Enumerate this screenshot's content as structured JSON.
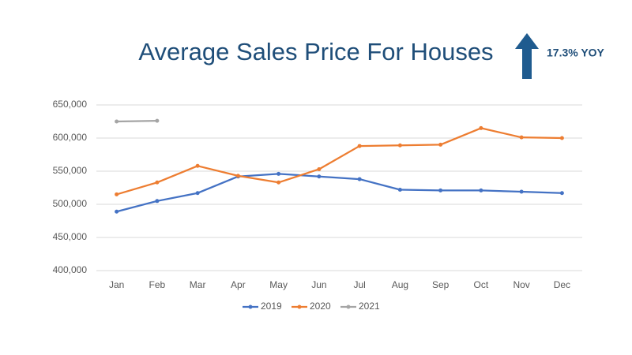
{
  "chart_data": {
    "type": "line",
    "title": "Average Sales Price For Houses",
    "annotation": "17.3% YOY",
    "categories": [
      "Jan",
      "Feb",
      "Mar",
      "Apr",
      "May",
      "Jun",
      "Jul",
      "Aug",
      "Sep",
      "Oct",
      "Nov",
      "Dec"
    ],
    "series": [
      {
        "name": "2019",
        "color": "#4472c4",
        "values": [
          489000,
          505000,
          517000,
          542000,
          546000,
          542000,
          538000,
          522000,
          521000,
          521000,
          519000,
          517000
        ]
      },
      {
        "name": "2020",
        "color": "#ed7d31",
        "values": [
          515000,
          533000,
          558000,
          543000,
          533000,
          553000,
          588000,
          589000,
          590000,
          615000,
          601000,
          600000
        ]
      },
      {
        "name": "2021",
        "color": "#a5a5a5",
        "values": [
          625000,
          626000,
          null,
          null,
          null,
          null,
          null,
          null,
          null,
          null,
          null,
          null
        ]
      }
    ],
    "ylim": [
      400000,
      650000
    ],
    "yticks": [
      {
        "value": 400000,
        "label": "400,000"
      },
      {
        "value": 450000,
        "label": "450,000"
      },
      {
        "value": 500000,
        "label": "500,000"
      },
      {
        "value": 550000,
        "label": "550,000"
      },
      {
        "value": 600000,
        "label": "600,000"
      },
      {
        "value": 650000,
        "label": "650,000"
      }
    ],
    "grid": true,
    "legend": "bottom"
  }
}
